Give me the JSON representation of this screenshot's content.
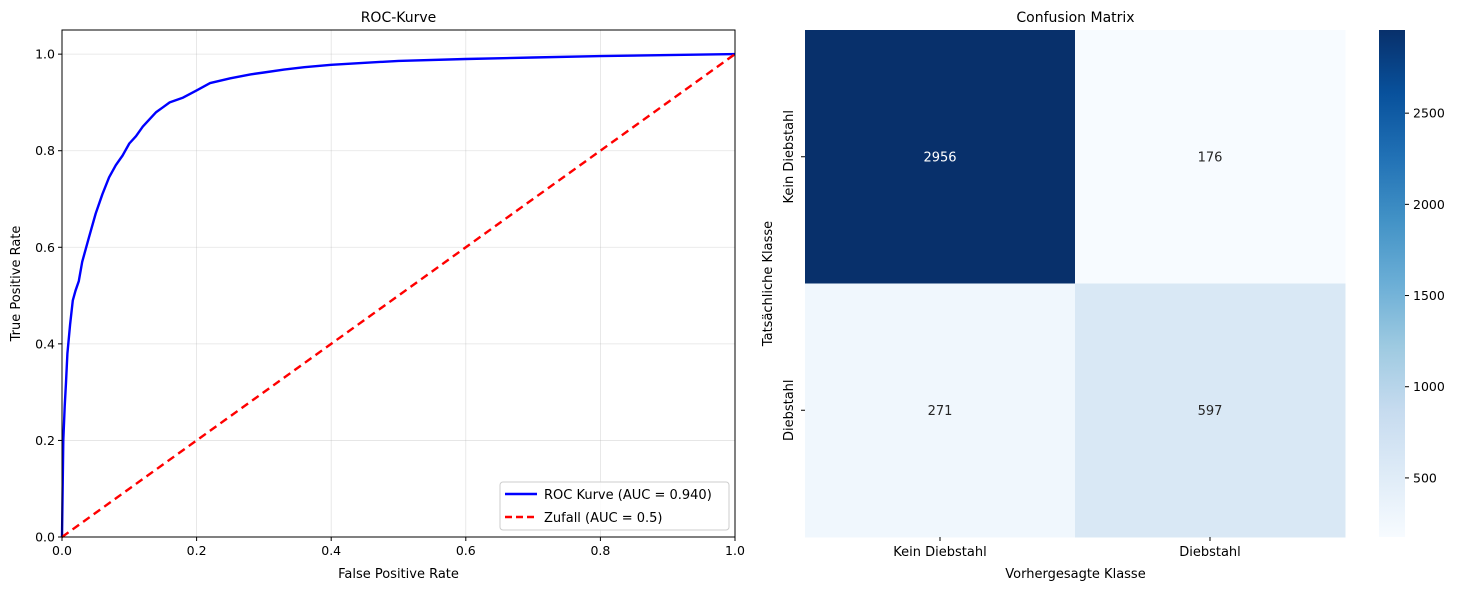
{
  "chart_data": [
    {
      "type": "line",
      "title": "ROC-Kurve",
      "xlabel": "False Positive Rate",
      "ylabel": "True Positive Rate",
      "xlim": [
        0,
        1
      ],
      "ylim": [
        0,
        1.05
      ],
      "xticks": [
        "0.0",
        "0.2",
        "0.4",
        "0.6",
        "0.8",
        "1.0"
      ],
      "yticks": [
        "0.0",
        "0.2",
        "0.4",
        "0.6",
        "0.8",
        "1.0"
      ],
      "grid": true,
      "legend_position": "lower-right",
      "series": [
        {
          "name": "ROC Kurve (AUC = 0.940)",
          "color": "#0000ff",
          "style": "solid",
          "x": [
            0,
            0.002,
            0.004,
            0.006,
            0.008,
            0.012,
            0.016,
            0.02,
            0.025,
            0.03,
            0.04,
            0.05,
            0.06,
            0.07,
            0.08,
            0.09,
            0.1,
            0.11,
            0.12,
            0.13,
            0.14,
            0.15,
            0.16,
            0.18,
            0.2,
            0.22,
            0.25,
            0.28,
            0.3,
            0.33,
            0.36,
            0.4,
            0.45,
            0.5,
            0.6,
            0.7,
            0.8,
            0.9,
            1.0
          ],
          "y": [
            0,
            0.2,
            0.27,
            0.32,
            0.38,
            0.44,
            0.49,
            0.51,
            0.53,
            0.57,
            0.62,
            0.67,
            0.71,
            0.745,
            0.77,
            0.79,
            0.815,
            0.83,
            0.85,
            0.865,
            0.88,
            0.89,
            0.9,
            0.91,
            0.925,
            0.94,
            0.95,
            0.958,
            0.962,
            0.968,
            0.973,
            0.978,
            0.982,
            0.986,
            0.99,
            0.993,
            0.996,
            0.998,
            1.0
          ]
        },
        {
          "name": "Zufall (AUC = 0.5)",
          "color": "#ff0000",
          "style": "dashed",
          "x": [
            0,
            1
          ],
          "y": [
            0,
            1
          ]
        }
      ]
    },
    {
      "type": "heatmap",
      "title": "Confusion Matrix",
      "xlabel": "Vorhergesagte Klasse",
      "ylabel": "Tatsächliche Klasse",
      "x_categories": [
        "Kein Diebstahl",
        "Diebstahl"
      ],
      "y_categories": [
        "Kein Diebstahl",
        "Diebstahl"
      ],
      "values": [
        [
          2956,
          176
        ],
        [
          271,
          597
        ]
      ],
      "colorbar": {
        "colormap": "Blues",
        "range": [
          176,
          2956
        ],
        "ticks": [
          "500",
          "1000",
          "1500",
          "2000",
          "2500"
        ]
      }
    }
  ]
}
